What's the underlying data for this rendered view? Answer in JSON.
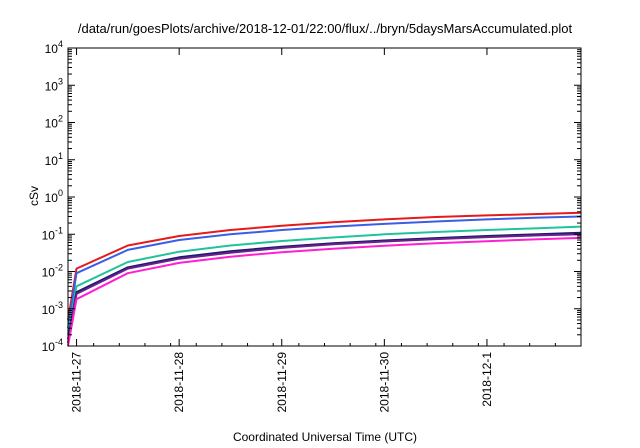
{
  "chart_data": {
    "type": "line",
    "title": "/data/run/goesPlots/archive/2018-12-01/22:00/flux/../bryn/5daysMarsAccumulated.plot",
    "xlabel": "Coordinated Universal Time (UTC)",
    "ylabel": "cSv",
    "y_scale": "log",
    "ylim_exponents": [
      -4,
      4
    ],
    "y_ticks": [
      {
        "base": "10",
        "exp": "4"
      },
      {
        "base": "10",
        "exp": "3"
      },
      {
        "base": "10",
        "exp": "2"
      },
      {
        "base": "10",
        "exp": "1"
      },
      {
        "base": "10",
        "exp": "0"
      },
      {
        "base": "10",
        "exp": "-1"
      },
      {
        "base": "10",
        "exp": "-2"
      },
      {
        "base": "10",
        "exp": "-3"
      },
      {
        "base": "10",
        "exp": "-4"
      }
    ],
    "x_range_days": [
      "2018-11-26T22:00",
      "2018-12-01T22:00"
    ],
    "x_ticks": [
      "2018-11-27",
      "2018-11-28",
      "2018-11-29",
      "2018-11-30",
      "2018-12-1"
    ],
    "grid": false,
    "legend": "none",
    "x": [
      "2018-11-26T22:00",
      "2018-11-27T00:00",
      "2018-11-27T12:00",
      "2018-11-28T00:00",
      "2018-11-28T12:00",
      "2018-11-29T00:00",
      "2018-11-29T12:00",
      "2018-11-30T00:00",
      "2018-11-30T12:00",
      "2018-12-01T00:00",
      "2018-12-01T12:00",
      "2018-12-01T22:00"
    ],
    "series": [
      {
        "color": "#e41a1c",
        "values": [
          0.0005,
          0.012,
          0.05,
          0.09,
          0.13,
          0.17,
          0.21,
          0.25,
          0.29,
          0.32,
          0.35,
          0.38
        ]
      },
      {
        "color": "#3a5ee6",
        "values": [
          0.0003,
          0.009,
          0.038,
          0.07,
          0.1,
          0.13,
          0.16,
          0.19,
          0.22,
          0.25,
          0.28,
          0.3
        ]
      },
      {
        "color": "#20c49b",
        "values": [
          0.0002,
          0.004,
          0.018,
          0.034,
          0.05,
          0.066,
          0.082,
          0.1,
          0.115,
          0.13,
          0.145,
          0.16
        ]
      },
      {
        "color": "#1a1a6e",
        "values": [
          0.00015,
          0.0028,
          0.013,
          0.024,
          0.035,
          0.046,
          0.057,
          0.068,
          0.079,
          0.09,
          0.1,
          0.11
        ]
      },
      {
        "color": "#6a1f8a",
        "values": [
          0.00012,
          0.0025,
          0.012,
          0.022,
          0.032,
          0.043,
          0.054,
          0.064,
          0.074,
          0.084,
          0.093,
          0.1
        ]
      },
      {
        "color": "#ff1fd2",
        "values": [
          0.0001,
          0.0018,
          0.009,
          0.017,
          0.025,
          0.033,
          0.041,
          0.049,
          0.057,
          0.065,
          0.073,
          0.08
        ]
      }
    ]
  }
}
